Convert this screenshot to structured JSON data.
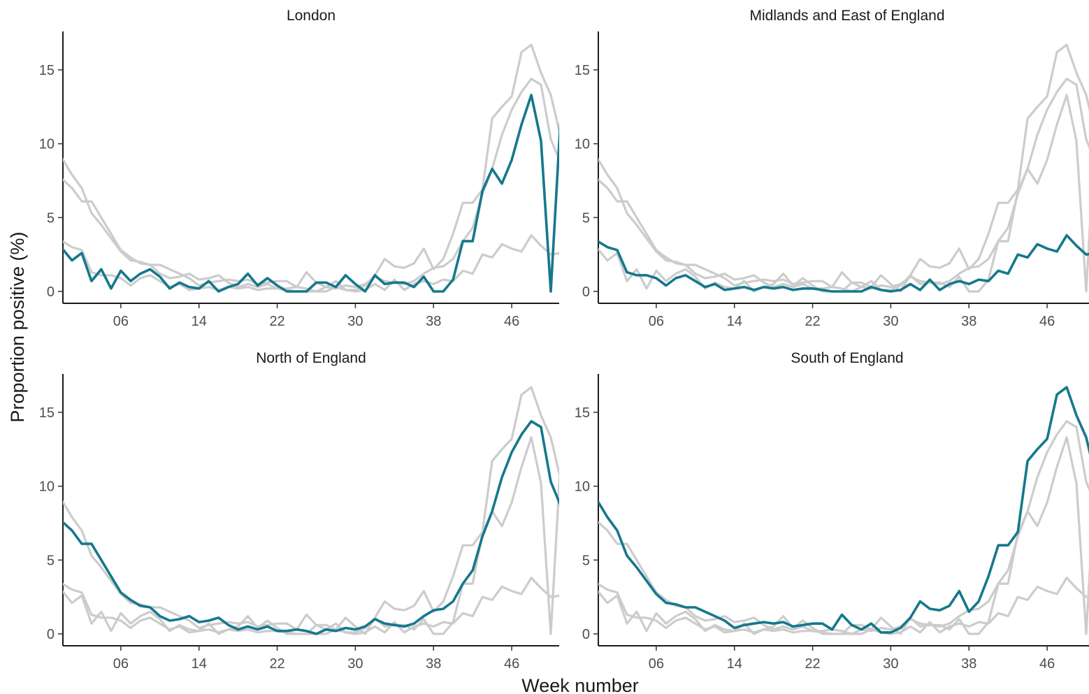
{
  "chart_data": {
    "type": "line",
    "xlabel": "Week number",
    "ylabel": "Proportion positive (%)",
    "x_ticks": [
      "06",
      "14",
      "22",
      "30",
      "38",
      "46"
    ],
    "y_ticks": [
      "0",
      "5",
      "10",
      "15"
    ],
    "xlim": [
      0,
      51
    ],
    "ylim": [
      0,
      17.5
    ],
    "colors": {
      "highlight": "#15788c",
      "background": "#cccccc"
    },
    "x": [
      0,
      1,
      2,
      3,
      4,
      5,
      6,
      7,
      8,
      9,
      10,
      11,
      12,
      13,
      14,
      15,
      16,
      17,
      18,
      19,
      20,
      21,
      22,
      23,
      24,
      25,
      26,
      27,
      28,
      29,
      30,
      31,
      32,
      33,
      34,
      35,
      36,
      37,
      38,
      39,
      40,
      41,
      42,
      43,
      44,
      45,
      46,
      47,
      48,
      49,
      50,
      51
    ],
    "series": [
      {
        "panel": "London",
        "values": [
          2.9,
          2.1,
          2.6,
          0.7,
          1.5,
          0.2,
          1.4,
          0.7,
          1.2,
          1.5,
          1.0,
          0.2,
          0.6,
          0.3,
          0.2,
          0.7,
          0.0,
          0.3,
          0.5,
          1.2,
          0.4,
          0.9,
          0.4,
          0.0,
          0.0,
          0.0,
          0.6,
          0.6,
          0.3,
          1.1,
          0.5,
          0.0,
          1.1,
          0.5,
          0.6,
          0.6,
          0.3,
          1.0,
          0.0,
          0.0,
          0.8,
          3.4,
          3.4,
          6.8,
          8.3,
          7.3,
          8.9,
          11.3,
          13.3,
          10.2,
          0.0,
          11.7
        ]
      },
      {
        "panel": "Midlands and East of England",
        "values": [
          3.4,
          3.0,
          2.8,
          1.3,
          1.1,
          1.1,
          0.9,
          0.4,
          0.9,
          1.1,
          0.7,
          0.3,
          0.5,
          0.1,
          0.2,
          0.3,
          0.1,
          0.3,
          0.2,
          0.3,
          0.1,
          0.2,
          0.2,
          0.1,
          0.0,
          0.0,
          0.0,
          0.0,
          0.3,
          0.1,
          0.0,
          0.1,
          0.5,
          0.1,
          0.8,
          0.1,
          0.5,
          0.7,
          0.5,
          0.8,
          0.7,
          1.4,
          1.2,
          2.5,
          2.3,
          3.2,
          2.9,
          2.7,
          3.8,
          3.1,
          2.5,
          2.6
        ]
      },
      {
        "panel": "North of England",
        "values": [
          7.6,
          7.0,
          6.1,
          6.1,
          5.0,
          3.9,
          2.8,
          2.3,
          1.9,
          1.8,
          1.2,
          0.9,
          1.0,
          1.2,
          0.8,
          0.9,
          1.1,
          0.6,
          0.3,
          0.5,
          0.3,
          0.5,
          0.2,
          0.2,
          0.3,
          0.2,
          0.0,
          0.3,
          0.2,
          0.4,
          0.3,
          0.5,
          1.0,
          0.7,
          0.6,
          0.5,
          0.7,
          1.2,
          1.6,
          1.7,
          2.2,
          3.4,
          4.3,
          6.6,
          8.3,
          10.6,
          12.3,
          13.5,
          14.4,
          14.0,
          10.3,
          8.7
        ]
      },
      {
        "panel": "South of England",
        "values": [
          9.0,
          7.9,
          7.0,
          5.3,
          4.5,
          3.6,
          2.7,
          2.1,
          2.0,
          1.8,
          1.8,
          1.5,
          1.2,
          0.9,
          0.4,
          0.6,
          0.7,
          0.8,
          0.7,
          0.8,
          0.5,
          0.6,
          0.7,
          0.7,
          0.3,
          1.3,
          0.6,
          0.3,
          0.7,
          0.1,
          0.1,
          0.4,
          1.1,
          2.2,
          1.7,
          1.6,
          1.9,
          2.9,
          1.5,
          2.2,
          3.9,
          6.0,
          6.0,
          6.9,
          11.7,
          12.5,
          13.2,
          16.2,
          16.7,
          14.8,
          13.3,
          10.5
        ]
      }
    ],
    "panels": [
      {
        "title": "London"
      },
      {
        "title": "Midlands and East of England"
      },
      {
        "title": "North of England"
      },
      {
        "title": "South of England"
      }
    ]
  }
}
